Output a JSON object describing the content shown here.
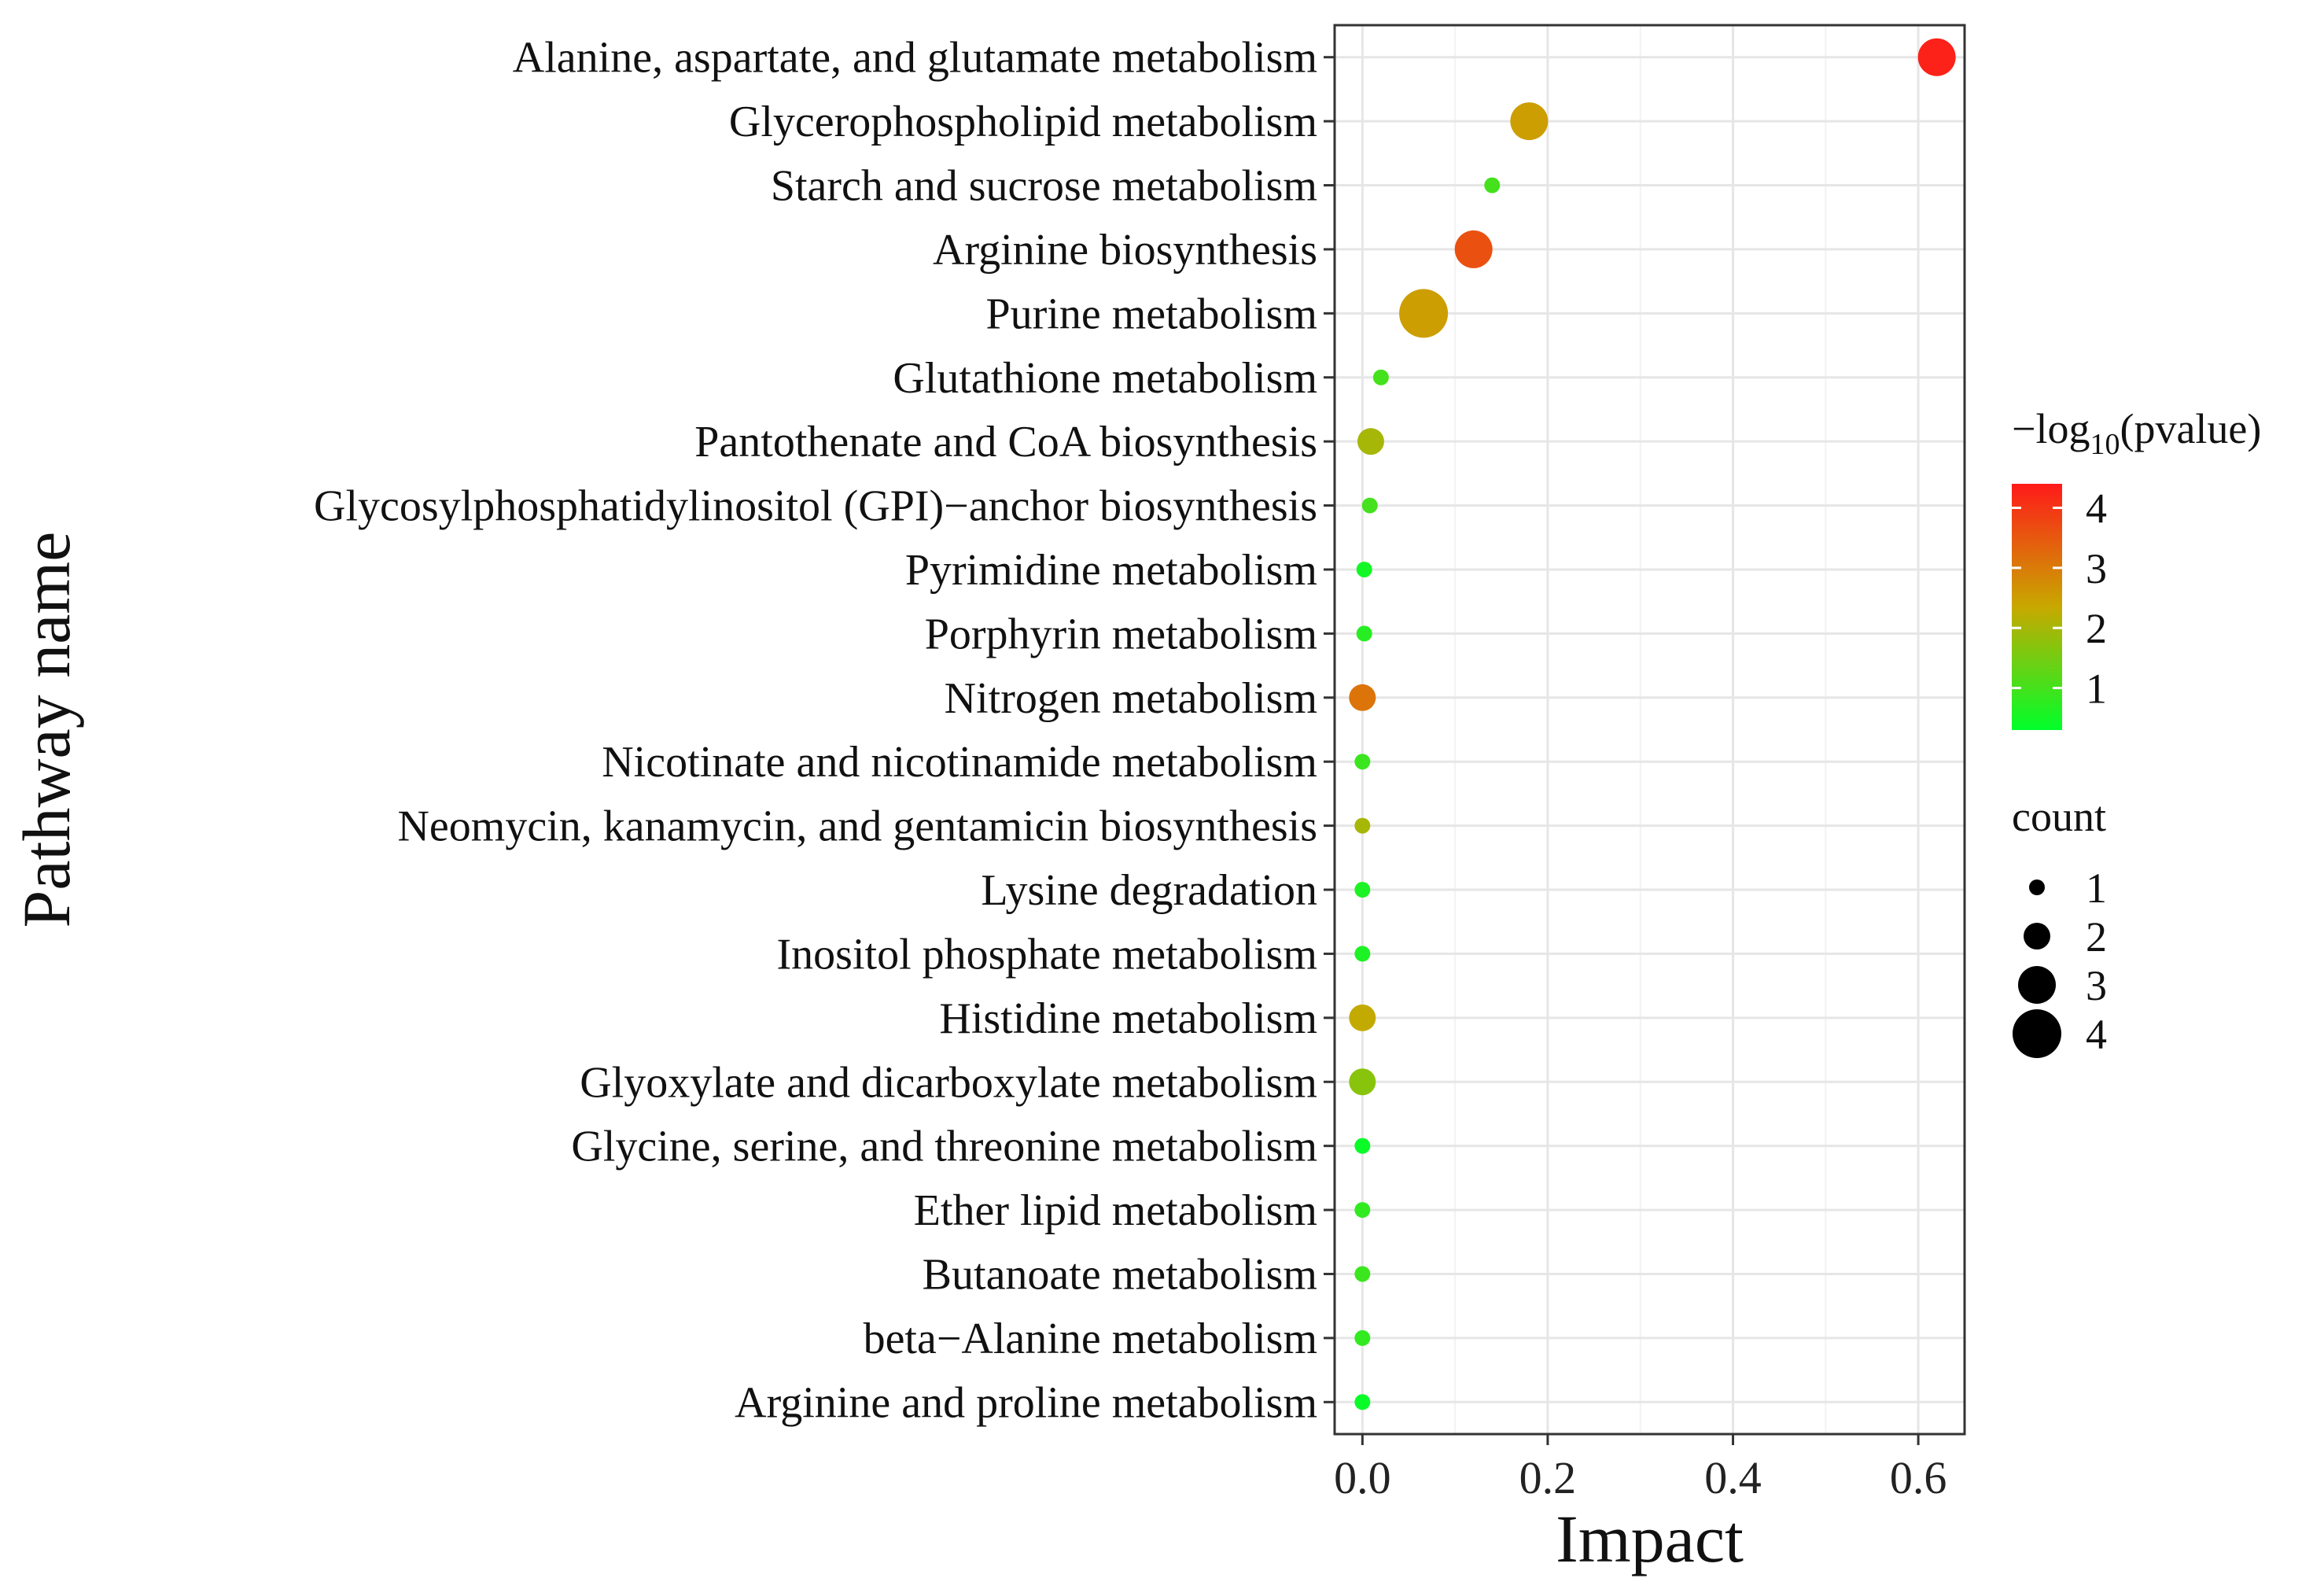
{
  "chart_data": {
    "type": "scatter",
    "title": "",
    "xlabel": "Impact",
    "ylabel": "Pathway name",
    "xlim": [
      -0.03,
      0.65
    ],
    "xticks": [
      0.0,
      0.2,
      0.4,
      0.6
    ],
    "xtick_labels": [
      "0.0",
      "0.2",
      "0.4",
      "0.6"
    ],
    "grid": true,
    "pathways": [
      {
        "name": "Alanine, aspartate, and glutamate metabolism",
        "impact": 0.62,
        "neglog10p": 4.3,
        "count": 3
      },
      {
        "name": "Glycerophospholipid metabolism",
        "impact": 0.18,
        "neglog10p": 2.5,
        "count": 3
      },
      {
        "name": "Starch and sucrose metabolism",
        "impact": 0.14,
        "neglog10p": 1.0,
        "count": 1
      },
      {
        "name": "Arginine biosynthesis",
        "impact": 0.12,
        "neglog10p": 3.6,
        "count": 3
      },
      {
        "name": "Purine metabolism",
        "impact": 0.066,
        "neglog10p": 2.5,
        "count": 4
      },
      {
        "name": "Glutathione metabolism",
        "impact": 0.02,
        "neglog10p": 1.0,
        "count": 1
      },
      {
        "name": "Pantothenate and CoA biosynthesis",
        "impact": 0.009,
        "neglog10p": 2.0,
        "count": 2
      },
      {
        "name": "Glycosylphosphatidylinositol (GPI)−anchor biosynthesis",
        "impact": 0.008,
        "neglog10p": 1.0,
        "count": 1
      },
      {
        "name": "Pyrimidine metabolism",
        "impact": 0.002,
        "neglog10p": 0.5,
        "count": 1
      },
      {
        "name": "Porphyrin metabolism",
        "impact": 0.002,
        "neglog10p": 0.7,
        "count": 1
      },
      {
        "name": "Nitrogen metabolism",
        "impact": 0.0,
        "neglog10p": 3.1,
        "count": 2
      },
      {
        "name": "Nicotinate and nicotinamide metabolism",
        "impact": 0.0,
        "neglog10p": 0.9,
        "count": 1
      },
      {
        "name": "Neomycin, kanamycin, and gentamicin biosynthesis",
        "impact": 0.0,
        "neglog10p": 2.0,
        "count": 1
      },
      {
        "name": "Lysine degradation",
        "impact": 0.0,
        "neglog10p": 0.6,
        "count": 1
      },
      {
        "name": "Inositol phosphate metabolism",
        "impact": 0.0,
        "neglog10p": 0.6,
        "count": 1
      },
      {
        "name": "Histidine metabolism",
        "impact": 0.0,
        "neglog10p": 2.3,
        "count": 2
      },
      {
        "name": "Glyoxylate and dicarboxylate metabolism",
        "impact": 0.0,
        "neglog10p": 1.7,
        "count": 2
      },
      {
        "name": "Glycine, serine, and threonine metabolism",
        "impact": 0.0,
        "neglog10p": 0.4,
        "count": 1
      },
      {
        "name": "Ether lipid metabolism",
        "impact": 0.0,
        "neglog10p": 0.8,
        "count": 1
      },
      {
        "name": "Butanoate metabolism",
        "impact": 0.0,
        "neglog10p": 0.9,
        "count": 1
      },
      {
        "name": "beta−Alanine metabolism",
        "impact": 0.0,
        "neglog10p": 0.8,
        "count": 1
      },
      {
        "name": "Arginine and proline metabolism",
        "impact": 0.0,
        "neglog10p": 0.4,
        "count": 1
      }
    ],
    "color_legend": {
      "title_prefix": "−log",
      "title_sub": "10",
      "title_suffix": "(pvalue)",
      "min": 0.3,
      "max": 4.4,
      "ticks": [
        4,
        3,
        2,
        1
      ],
      "tick_labels": [
        "4",
        "3",
        "2",
        "1"
      ],
      "low_color": "#00ff2a",
      "mid_color": "#c8a800",
      "high_color": "#ff1a1a"
    },
    "size_legend": {
      "title": "count",
      "values": [
        1,
        2,
        3,
        4
      ],
      "labels": [
        "1",
        "2",
        "3",
        "4"
      ]
    }
  }
}
